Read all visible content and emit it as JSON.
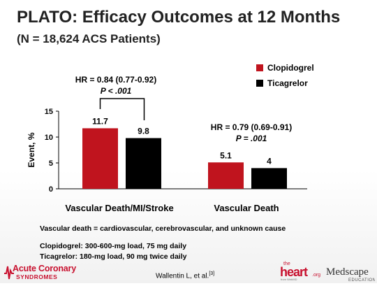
{
  "title": "PLATO: Efficacy Outcomes at 12 Months",
  "subtitle": "(N = 18,624 ACS Patients)",
  "chart_data": {
    "type": "bar",
    "title": "",
    "xlabel": "",
    "ylabel": "Event, %",
    "ylim": [
      0,
      15
    ],
    "yticks": [
      "0",
      "5",
      "10",
      "15"
    ],
    "categories": [
      "Vascular Death/MI/Stroke",
      "Vascular Death"
    ],
    "series": [
      {
        "name": "Clopidogrel",
        "values": [
          11.7,
          5.1
        ],
        "labels": [
          "11.7",
          "5.1"
        ],
        "color": "#c0141e"
      },
      {
        "name": "Ticagrelor",
        "values": [
          9.8,
          4.0
        ],
        "labels": [
          "9.8",
          "4"
        ],
        "color": "#000000"
      }
    ],
    "legend_position": "top-right",
    "annotations": [
      {
        "hr": "HR = 0.84 (0.77-0.92)",
        "p": "P < .001",
        "bracket": true
      },
      {
        "hr": "HR = 0.79 (0.69-0.91)",
        "p": "P = .001",
        "bracket": false
      }
    ]
  },
  "notes": {
    "definition": "Vascular death = cardiovascular, cerebrovascular, and unknown cause",
    "clopidogrel_dose": "Clopidogrel: 300-600-mg load, 75 mg daily",
    "ticagrelor_dose": "Ticagrelor: 180-mg load, 90 mg twice daily"
  },
  "footer": {
    "left_logo_line1": "Acute Coronary",
    "left_logo_line2": "SYNDROMES",
    "citation": "Wallentin L, et al.",
    "citation_ref": "[3]",
    "heart_logo": "the heart.org",
    "medscape_logo": "Medscape",
    "medscape_sub": "EDUCATION"
  },
  "colors": {
    "accent_red": "#c0141e",
    "black": "#000000"
  }
}
